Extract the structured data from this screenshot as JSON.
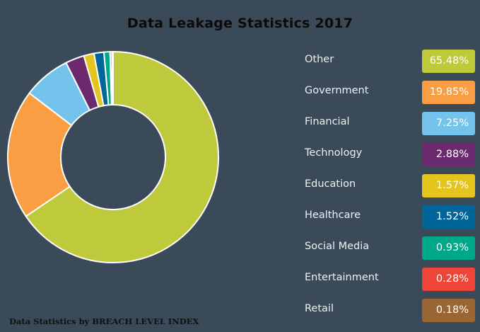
{
  "title": "Data Leakage Statistics 2017",
  "source": "Data Statistics by BREACH LEVEL INDEX",
  "chart_data": {
    "type": "pie",
    "subtype": "donut",
    "title": "Data Leakage Statistics 2017",
    "categories": [
      "Other",
      "Government",
      "Financial",
      "Technology",
      "Education",
      "Healthcare",
      "Social Media",
      "Entertainment",
      "Retail"
    ],
    "values": [
      65.48,
      19.85,
      7.25,
      2.88,
      1.57,
      1.52,
      0.93,
      0.28,
      0.18
    ],
    "colors": [
      "#bfc93c",
      "#f99e42",
      "#73c3ec",
      "#6b2a6e",
      "#e4c41f",
      "#006699",
      "#00a88a",
      "#f04438",
      "#9b6633"
    ],
    "legend_position": "right",
    "annotations": [
      "Data Statistics by BREACH LEVEL INDEX"
    ]
  },
  "legend": [
    {
      "label": "Other",
      "value": "65.48%",
      "color": "#bfc93c"
    },
    {
      "label": "Government",
      "value": "19.85%",
      "color": "#f99e42"
    },
    {
      "label": "Financial",
      "value": "7.25%",
      "color": "#73c3ec"
    },
    {
      "label": "Technology",
      "value": "2.88%",
      "color": "#6b2a6e"
    },
    {
      "label": "Education",
      "value": "1.57%",
      "color": "#e4c41f"
    },
    {
      "label": "Healthcare",
      "value": "1.52%",
      "color": "#006699"
    },
    {
      "label": "Social Media",
      "value": "0.93%",
      "color": "#00a88a"
    },
    {
      "label": "Entertainment",
      "value": "0.28%",
      "color": "#f04438"
    },
    {
      "label": "Retail",
      "value": "0.18%",
      "color": "#9b6633"
    }
  ]
}
